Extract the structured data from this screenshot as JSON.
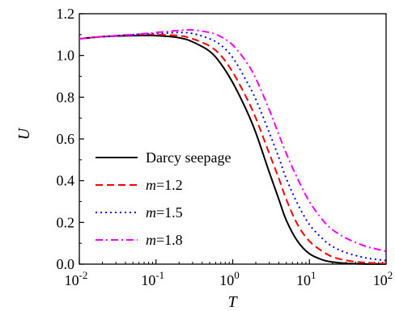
{
  "chart_data": {
    "type": "line",
    "title": "",
    "xlabel": "T",
    "ylabel": "U",
    "xscale": "log",
    "xlim": [
      0.01,
      100
    ],
    "ylim": [
      0.0,
      1.2
    ],
    "grid": false,
    "legend_position": "lower-left",
    "x_ticks": [
      {
        "base": "10",
        "exp": "-2"
      },
      {
        "base": "10",
        "exp": "-1"
      },
      {
        "base": "10",
        "exp": "0"
      },
      {
        "base": "10",
        "exp": "1"
      },
      {
        "base": "10",
        "exp": "2"
      }
    ],
    "y_ticks": [
      "0.0",
      "0.2",
      "0.4",
      "0.6",
      "0.8",
      "1.0",
      "1.2"
    ],
    "x": [
      0.01,
      0.02,
      0.05,
      0.1,
      0.2,
      0.3,
      0.5,
      0.7,
      1,
      1.5,
      2,
      3,
      4,
      5,
      7,
      10,
      15,
      20,
      30,
      50,
      70,
      100
    ],
    "series": [
      {
        "name": "Darcy seepage",
        "label_italic": "",
        "label_rest": "Darcy seepage",
        "color": "#000000",
        "dash": "solid",
        "values": [
          1.08,
          1.09,
          1.095,
          1.095,
          1.085,
          1.065,
          1.02,
          0.96,
          0.87,
          0.74,
          0.63,
          0.44,
          0.31,
          0.21,
          0.11,
          0.05,
          0.02,
          0.01,
          0.004,
          0.001,
          0.0005,
          0.0002
        ]
      },
      {
        "name": "m=1.2",
        "label_italic": "m",
        "label_rest": "=1.2",
        "color": "#ff0000",
        "dash": "dashed",
        "values": [
          1.08,
          1.09,
          1.1,
          1.1,
          1.095,
          1.08,
          1.045,
          1.0,
          0.92,
          0.8,
          0.7,
          0.53,
          0.41,
          0.31,
          0.19,
          0.11,
          0.06,
          0.035,
          0.018,
          0.008,
          0.005,
          0.003
        ]
      },
      {
        "name": "m=1.5",
        "label_italic": "m",
        "label_rest": "=1.5",
        "color": "#0000ff",
        "dash": "dotted",
        "values": [
          1.08,
          1.09,
          1.1,
          1.105,
          1.11,
          1.105,
          1.08,
          1.05,
          0.99,
          0.88,
          0.79,
          0.63,
          0.51,
          0.41,
          0.29,
          0.19,
          0.12,
          0.085,
          0.055,
          0.033,
          0.024,
          0.017
        ]
      },
      {
        "name": "m=1.8",
        "label_italic": "m",
        "label_rest": "=1.8",
        "color": "#ff00ff",
        "dash": "dashdot",
        "values": [
          1.08,
          1.09,
          1.1,
          1.11,
          1.12,
          1.122,
          1.11,
          1.09,
          1.05,
          0.97,
          0.89,
          0.74,
          0.62,
          0.53,
          0.41,
          0.3,
          0.21,
          0.165,
          0.125,
          0.09,
          0.075,
          0.062
        ]
      }
    ]
  }
}
